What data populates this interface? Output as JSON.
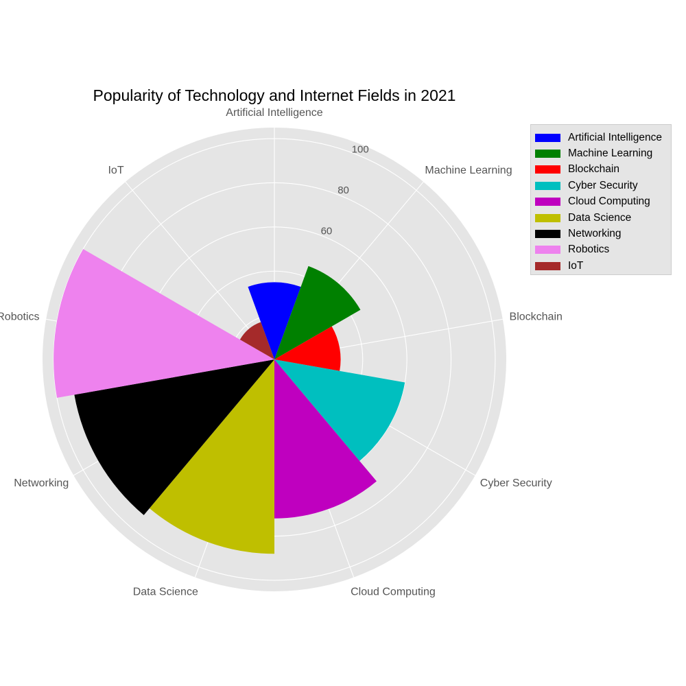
{
  "chart_data": {
    "type": "polar-bar",
    "title": "Popularity of Technology and Internet Fields in 2021",
    "categories": [
      "Artificial Intelligence",
      "Machine Learning",
      "Blockchain",
      "Cyber Security",
      "Cloud Computing",
      "Data Science",
      "Networking",
      "Robotics",
      "IoT"
    ],
    "values": [
      35,
      45,
      30,
      60,
      72,
      88,
      92,
      100,
      18
    ],
    "colors": [
      "#0000ff",
      "#008000",
      "#ff0000",
      "#00bfbf",
      "#bf00bf",
      "#bfbf00",
      "#000000",
      "#ee82ee",
      "#a52a2a"
    ],
    "radial_ticks": [
      20,
      40,
      60,
      80,
      100
    ],
    "radial_tick_labels": [
      "",
      "",
      "60",
      "80",
      "100"
    ],
    "rlim": [
      0,
      105
    ],
    "grid": true,
    "legend": {
      "placement": "right",
      "entries": [
        "Artificial Intelligence",
        "Machine Learning",
        "Blockchain",
        "Cyber Security",
        "Cloud Computing",
        "Data Science",
        "Networking",
        "Robotics",
        "IoT"
      ]
    }
  }
}
